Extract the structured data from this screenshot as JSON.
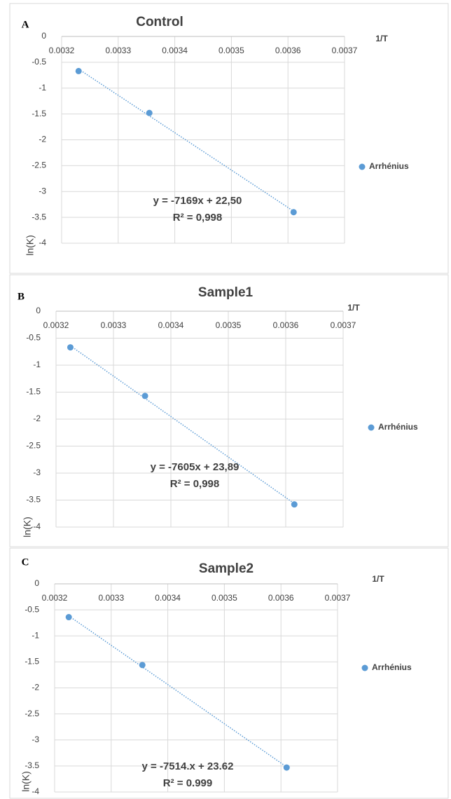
{
  "chart_data": [
    {
      "type": "scatter",
      "panel": "A",
      "title": "Control",
      "x_label": "1/T",
      "y_label": "ln(K)",
      "series": [
        {
          "name": "Arrhénius",
          "color": "#5b9bd5",
          "x": [
            0.00323,
            0.003355,
            0.00361
          ],
          "values": [
            -0.67,
            -1.48,
            -3.4
          ]
        }
      ],
      "annotations": [
        "y = -7169x + 22,50",
        "R² = 0,998"
      ],
      "xlim": [
        0.0032,
        0.0037
      ],
      "xticks": [
        0.0032,
        0.0033,
        0.0034,
        0.0035,
        0.0036,
        0.0037
      ],
      "ylim": [
        -4,
        0
      ],
      "yticks": [
        0,
        -0.5,
        -1,
        -1.5,
        -2,
        -2.5,
        -3,
        -3.5,
        -4
      ],
      "grid": true,
      "legend": "right"
    },
    {
      "type": "scatter",
      "panel": "B",
      "title": "Sample1",
      "x_label": "1/T",
      "y_label": "ln(K)",
      "series": [
        {
          "name": "Arrhénius",
          "color": "#5b9bd5",
          "x": [
            0.003225,
            0.003355,
            0.003615
          ],
          "values": [
            -0.67,
            -1.57,
            -3.58
          ]
        }
      ],
      "annotations": [
        "y = -7605x + 23,89",
        "R² = 0,998"
      ],
      "xlim": [
        0.0032,
        0.0037
      ],
      "xticks": [
        0.0032,
        0.0033,
        0.0034,
        0.0035,
        0.0036,
        0.0037
      ],
      "ylim": [
        -4,
        0
      ],
      "yticks": [
        0,
        -0.5,
        -1,
        -1.5,
        -2,
        -2.5,
        -3,
        -3.5,
        -4
      ],
      "grid": true,
      "legend": "right"
    },
    {
      "type": "scatter",
      "panel": "C",
      "title": "Sample2",
      "x_label": "1/T",
      "y_label": "ln(K)",
      "series": [
        {
          "name": "Arrhénius",
          "color": "#5b9bd5",
          "x": [
            0.003225,
            0.003355,
            0.00361
          ],
          "values": [
            -0.64,
            -1.56,
            -3.53
          ]
        }
      ],
      "annotations": [
        "y = -7514.x + 23.62",
        "R² = 0.999"
      ],
      "xlim": [
        0.0032,
        0.0037
      ],
      "xticks": [
        0.0032,
        0.0033,
        0.0034,
        0.0035,
        0.0036,
        0.0037
      ],
      "ylim": [
        -4,
        0
      ],
      "yticks": [
        0,
        -0.5,
        -1,
        -1.5,
        -2,
        -2.5,
        -3,
        -3.5,
        -4
      ],
      "grid": true,
      "legend": "right"
    }
  ]
}
